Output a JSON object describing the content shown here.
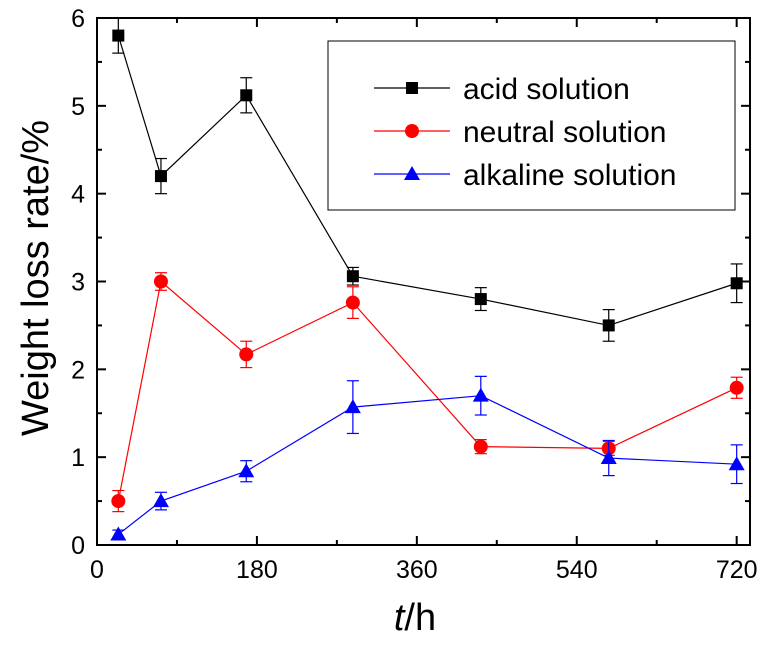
{
  "chart_data": {
    "type": "line",
    "xlabel_italic": "t",
    "xlabel_rest": "/h",
    "ylabel": "Weight  loss rate/%",
    "xlim": [
      0,
      735
    ],
    "ylim": [
      0,
      6
    ],
    "x_ticks": [
      0,
      180,
      360,
      540,
      720
    ],
    "y_ticks": [
      0,
      1,
      2,
      3,
      4,
      5,
      6
    ],
    "grid": false,
    "legend_position": "top-right",
    "series": [
      {
        "name": "acid solution",
        "color": "#000000",
        "marker": "square",
        "x": [
          24,
          72,
          168,
          288,
          432,
          576,
          720
        ],
        "y": [
          5.8,
          4.2,
          5.12,
          3.06,
          2.8,
          2.5,
          2.98
        ],
        "error": [
          0.2,
          0.2,
          0.2,
          0.1,
          0.13,
          0.18,
          0.22
        ]
      },
      {
        "name": "neutral solution",
        "color": "#ff0000",
        "marker": "circle",
        "x": [
          24,
          72,
          168,
          288,
          432,
          576,
          720
        ],
        "y": [
          0.5,
          3.0,
          2.17,
          2.76,
          1.12,
          1.1,
          1.79
        ],
        "error": [
          0.12,
          0.1,
          0.15,
          0.18,
          0.08,
          0.08,
          0.12
        ]
      },
      {
        "name": "alkaline solution",
        "color": "#0000ff",
        "marker": "triangle",
        "x": [
          24,
          72,
          168,
          288,
          432,
          576,
          720
        ],
        "y": [
          0.12,
          0.5,
          0.84,
          1.57,
          1.7,
          0.99,
          0.92
        ],
        "error": [
          0.05,
          0.1,
          0.12,
          0.3,
          0.22,
          0.2,
          0.22
        ]
      }
    ]
  }
}
